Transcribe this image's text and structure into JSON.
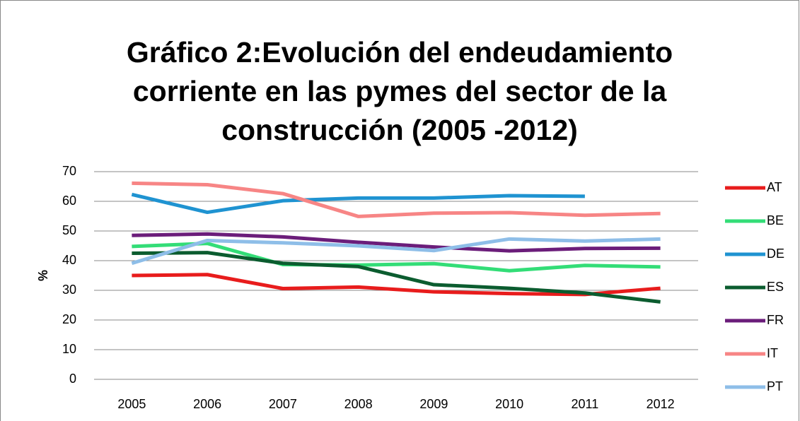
{
  "chart_data": {
    "type": "line",
    "title_lines": [
      "Gráfico 2:Evolución del endeudamiento",
      "corriente en las pymes del sector de la",
      "construcción (2005 -2012)"
    ],
    "y_label": "%",
    "categories": [
      "2005",
      "2006",
      "2007",
      "2008",
      "2009",
      "2010",
      "2011",
      "2012"
    ],
    "series": [
      {
        "name": "AT",
        "color": "#e81c1c",
        "values": [
          35,
          35.3,
          30.6,
          31.1,
          29.5,
          28.9,
          28.6,
          30.7
        ]
      },
      {
        "name": "BE",
        "color": "#33dd77",
        "values": [
          44.8,
          45.8,
          38.7,
          38.5,
          39,
          36.6,
          38.4,
          37.9
        ]
      },
      {
        "name": "DE",
        "color": "#1f93d1",
        "values": [
          62.3,
          56.3,
          60.2,
          61.1,
          61.1,
          61.9,
          61.7,
          null
        ]
      },
      {
        "name": "ES",
        "color": "#0b5c2f",
        "values": [
          42.5,
          42.7,
          39.1,
          38,
          31.9,
          30.7,
          29.1,
          26.1
        ]
      },
      {
        "name": "FR",
        "color": "#6b1d7a",
        "values": [
          48.5,
          49,
          48,
          46.2,
          44.6,
          43.3,
          44.1,
          44.2
        ]
      },
      {
        "name": "IT",
        "color": "#f78585",
        "values": [
          66.1,
          65.6,
          62.6,
          54.9,
          56,
          56.2,
          55.3,
          55.9
        ]
      },
      {
        "name": "PT",
        "color": "#8ebee8",
        "values": [
          39.1,
          46.8,
          46,
          45,
          43.4,
          47.3,
          46.6,
          47.3
        ]
      }
    ],
    "ylim": [
      0,
      70
    ],
    "yticks": [
      0,
      10,
      20,
      30,
      40,
      50,
      60,
      70
    ],
    "grid": true,
    "legend": "right"
  }
}
